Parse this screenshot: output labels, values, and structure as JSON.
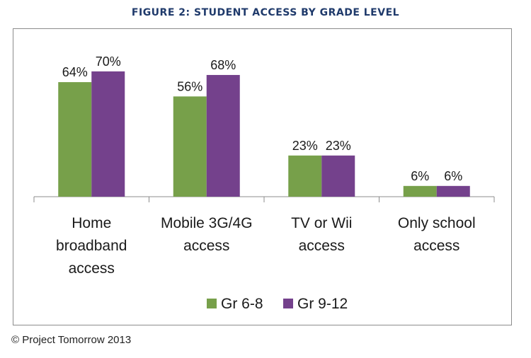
{
  "title": "FIGURE 2: STUDENT ACCESS BY GRADE LEVEL",
  "credit": "© Project Tomorrow 2013",
  "chart_data": {
    "type": "bar",
    "categories": [
      [
        "Home",
        "broadband",
        "access"
      ],
      [
        "Mobile 3G/4G",
        "access"
      ],
      [
        "TV or Wii",
        "access"
      ],
      [
        "Only school",
        "access"
      ]
    ],
    "series": [
      {
        "name": "Gr 6-8",
        "color": "#77a04a",
        "values": [
          64,
          56,
          23,
          6
        ],
        "labels": [
          "64%",
          "56%",
          "23%",
          "6%"
        ]
      },
      {
        "name": "Gr 9-12",
        "color": "#74418c",
        "values": [
          70,
          68,
          23,
          6
        ],
        "labels": [
          "70%",
          "68%",
          "23%",
          "6%"
        ]
      }
    ],
    "ylim": [
      0,
      70
    ],
    "grid": false,
    "legend": "bottom"
  }
}
